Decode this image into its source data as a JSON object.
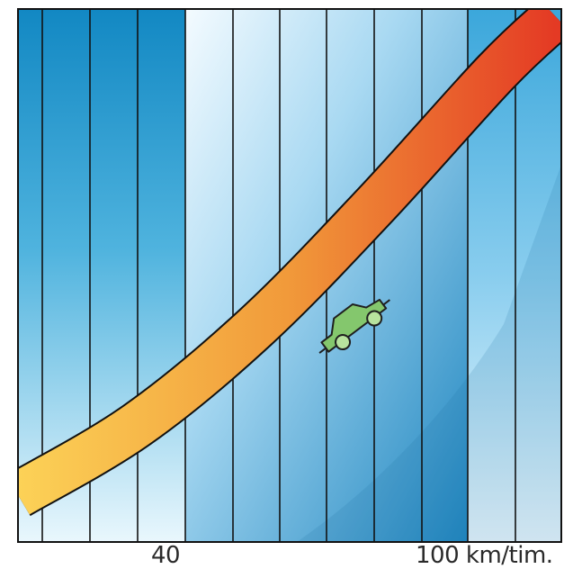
{
  "chart_data": {
    "type": "line",
    "title": "",
    "xlabel": "",
    "ylabel": "",
    "x_ticks": [
      {
        "value": 40,
        "label": "40"
      },
      {
        "value": 100,
        "label": "100 km/tim."
      }
    ],
    "series": [
      {
        "x": [
          20,
          40,
          60,
          80,
          100,
          110
        ],
        "y": [
          0.1,
          0.25,
          0.46,
          0.72,
          1.0,
          1.12
        ]
      }
    ],
    "xlim": [
      20,
      111
    ],
    "ylim": [
      0,
      1.12
    ],
    "grid": true,
    "legend": "none",
    "colors": {
      "band_low": "#fcd257",
      "band_mid": "#f19a3a",
      "band_high": "#e43a24",
      "car": "#84c76d",
      "background_light": "#dff1fb",
      "background_dark": "#2b98cf"
    },
    "icon": "car-icon"
  }
}
